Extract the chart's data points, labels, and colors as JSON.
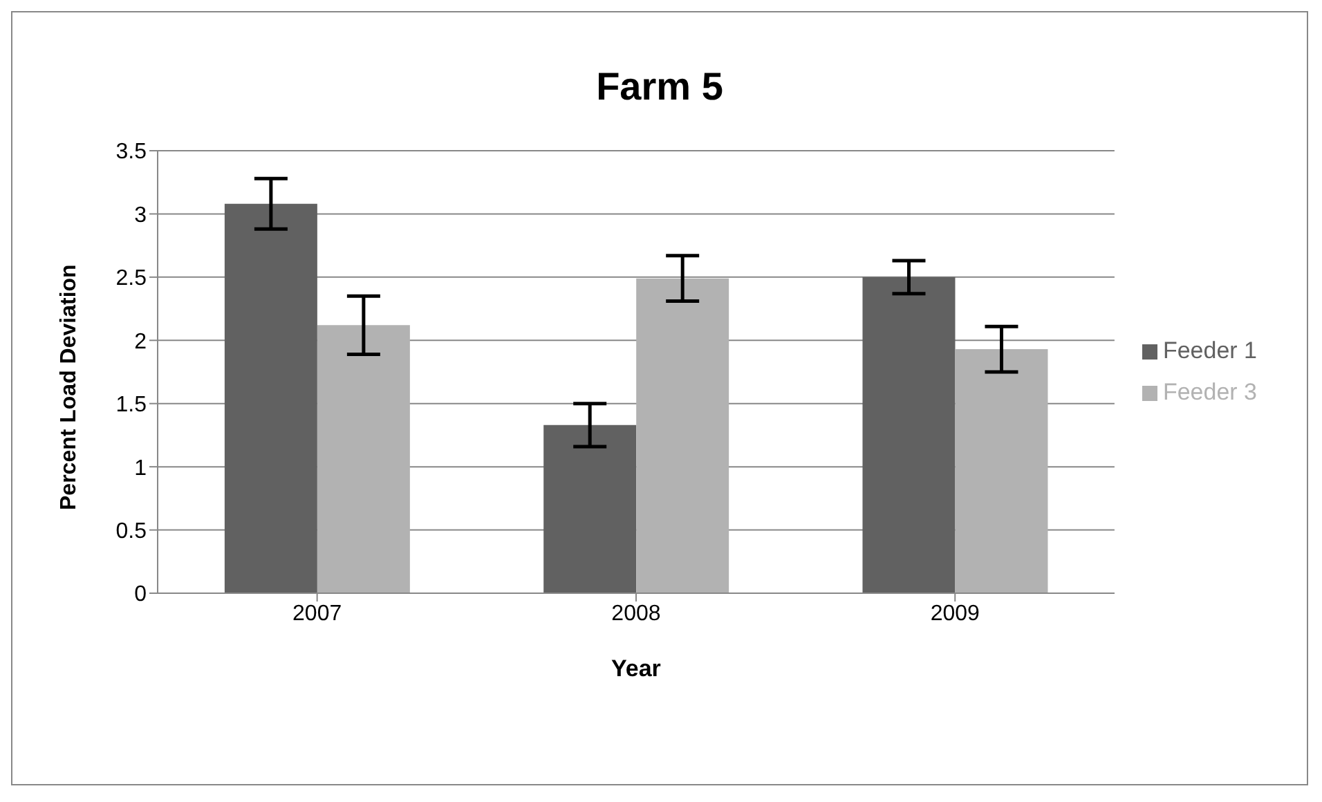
{
  "chart_data": {
    "type": "bar",
    "title": "Farm 5",
    "xlabel": "Year",
    "ylabel": "Percent Load Deviation",
    "categories": [
      "2007",
      "2008",
      "2009"
    ],
    "series": [
      {
        "name": "Feeder 1",
        "color": "#616161",
        "values": [
          3.08,
          1.33,
          2.5
        ],
        "errors": [
          0.2,
          0.17,
          0.13
        ]
      },
      {
        "name": "Feeder 3",
        "color": "#b2b2b2",
        "values": [
          2.12,
          2.49,
          1.93
        ],
        "errors": [
          0.23,
          0.18,
          0.18
        ]
      }
    ],
    "ylim": [
      0,
      3.5
    ],
    "yticks": [
      0,
      0.5,
      1,
      1.5,
      2,
      2.5,
      3,
      3.5
    ],
    "grid": "y",
    "legend": "right"
  }
}
